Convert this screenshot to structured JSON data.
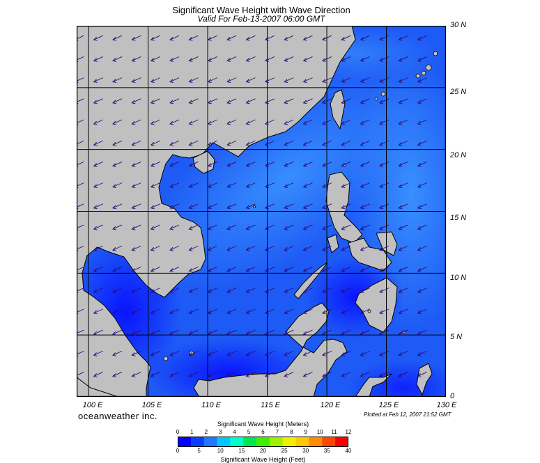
{
  "title": "Significant Wave Height with Wave Direction",
  "subtitle": "Valid For Feb-13-2007 06:00 GMT",
  "branding": "oceanweather inc.",
  "plotted_note": "Plotted at Feb 12, 2007 21:52 GMT",
  "map": {
    "region": "South China Sea",
    "lon_range": [
      99,
      130
    ],
    "lat_range": [
      0,
      30
    ],
    "grid_lon": [
      100,
      105,
      110,
      115,
      120,
      125,
      130
    ],
    "grid_lat": [
      0,
      5,
      10,
      15,
      20,
      25,
      30
    ],
    "lat_labels": [
      "30 N",
      "25 N",
      "20 N",
      "15 N",
      "10 N",
      "5 N",
      "0"
    ],
    "lon_labels": [
      "100 E",
      "105 E",
      "110 E",
      "115 E",
      "120 E",
      "125 E",
      "130 E"
    ],
    "land_color": "#c0c0c0",
    "arrow_color": "#2b0b78",
    "wave_direction": "from the northeast (arrows point southwest)"
  },
  "colorbar": {
    "meters_title": "Significant Wave Height (Meters)",
    "feet_title": "Significant Wave Height (Feet)",
    "meters_ticks": [
      "0",
      "1",
      "2",
      "3",
      "4",
      "5",
      "6",
      "7",
      "8",
      "9",
      "10",
      "11",
      "12"
    ],
    "feet_ticks": [
      "0",
      "5",
      "10",
      "15",
      "20",
      "25",
      "30",
      "35",
      "40"
    ],
    "colors": [
      "#0000ff",
      "#0a3cff",
      "#1e78ff",
      "#00c8ff",
      "#00ffc8",
      "#00e650",
      "#3cf000",
      "#a0f000",
      "#f0f000",
      "#ffc800",
      "#ff8c00",
      "#ff4600",
      "#ff0000"
    ]
  }
}
